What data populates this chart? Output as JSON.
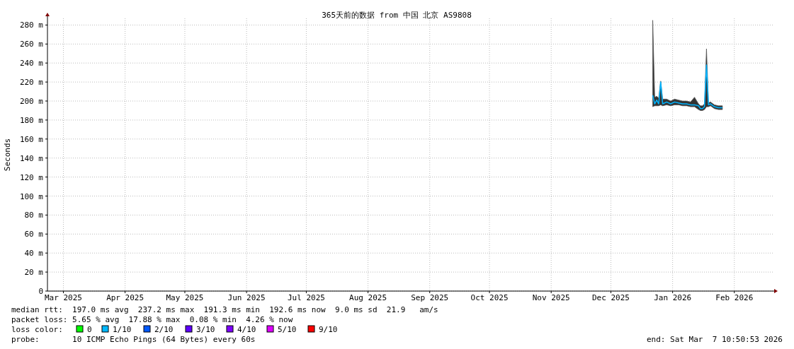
{
  "chart_data": {
    "type": "line",
    "title": "365天前的数据 from 中国 北京 AS9808",
    "ylabel": "Seconds",
    "xlim": [
      "2025-03-07",
      "2026-03-07"
    ],
    "xticks": [
      {
        "value": "2025-03-15",
        "label": "Mar 2025"
      },
      {
        "value": "2025-04-15",
        "label": "Apr 2025"
      },
      {
        "value": "2025-05-15",
        "label": "May 2025"
      },
      {
        "value": "2025-06-15",
        "label": "Jun 2025"
      },
      {
        "value": "2025-07-15",
        "label": "Jul 2025"
      },
      {
        "value": "2025-08-15",
        "label": "Aug 2025"
      },
      {
        "value": "2025-09-15",
        "label": "Sep 2025"
      },
      {
        "value": "2025-10-15",
        "label": "Oct 2025"
      },
      {
        "value": "2025-11-15",
        "label": "Nov 2025"
      },
      {
        "value": "2025-12-15",
        "label": "Dec 2025"
      },
      {
        "value": "2026-01-15",
        "label": "Jan 2026"
      },
      {
        "value": "2026-02-15",
        "label": "Feb 2026"
      }
    ],
    "ylim": [
      0,
      287
    ],
    "yticks": [
      0,
      {
        "value": 20,
        "label": "20 m"
      },
      {
        "value": 40,
        "label": "40 m"
      },
      {
        "value": 60,
        "label": "60 m"
      },
      {
        "value": 80,
        "label": "80 m"
      },
      {
        "value": 100,
        "label": "100 m"
      },
      {
        "value": 120,
        "label": "120 m"
      },
      {
        "value": 140,
        "label": "140 m"
      },
      {
        "value": 160,
        "label": "160 m"
      },
      {
        "value": 180,
        "label": "180 m"
      },
      {
        "value": 200,
        "label": "200 m"
      },
      {
        "value": 220,
        "label": "220 m"
      },
      {
        "value": 240,
        "label": "240 m"
      },
      {
        "value": 260,
        "label": "260 m"
      },
      {
        "value": 280,
        "label": "280 m"
      }
    ],
    "grid": true,
    "series": [
      {
        "color": "#00b4ff",
        "x": [
          "2026-01-05",
          "2026-01-06",
          "2026-01-07",
          "2026-01-08",
          "2026-01-09",
          "2026-01-10",
          "2026-01-12",
          "2026-01-14",
          "2026-01-16",
          "2026-01-18",
          "2026-01-20",
          "2026-01-22",
          "2026-01-24",
          "2026-01-26",
          "2026-01-28",
          "2026-01-29",
          "2026-01-30",
          "2026-01-31",
          "2026-02-01",
          "2026-02-02",
          "2026-02-03",
          "2026-02-05",
          "2026-02-07",
          "2026-02-09"
        ],
        "values": [
          206,
          197,
          201,
          197,
          220,
          197,
          199,
          197,
          199,
          198,
          197,
          197,
          196,
          196,
          195,
          192,
          192,
          194,
          238,
          196,
          197,
          194,
          193,
          193
        ],
        "lower": [
          194,
          195,
          195,
          195,
          196,
          195,
          196,
          195,
          196,
          196,
          195,
          195,
          194,
          194,
          191,
          190,
          190,
          191,
          194,
          194,
          195,
          192,
          191,
          191
        ],
        "upper": [
          285,
          204,
          205,
          203,
          221,
          202,
          202,
          200,
          202,
          201,
          200,
          200,
          199,
          204,
          197,
          195,
          195,
          197,
          255,
          198,
          199,
          196,
          195,
          195
        ]
      }
    ],
    "annotations": [
      "median rtt:  197.0 ms avg  237.2 ms max  191.3 ms min  192.6 ms now  9.0 ms sd  21.9   am/s",
      "packet loss: 5.65 % avg  17.88 % max  0.08 % min  4.26 % now",
      "loss color:",
      "0",
      "1/10",
      "2/10",
      "3/10",
      "4/10",
      "5/10",
      "9/10",
      "probe:       10 ICMP Echo Pings (64 Bytes) every 60s",
      "end: Sat Mar  7 10:50:53 2026"
    ]
  }
}
